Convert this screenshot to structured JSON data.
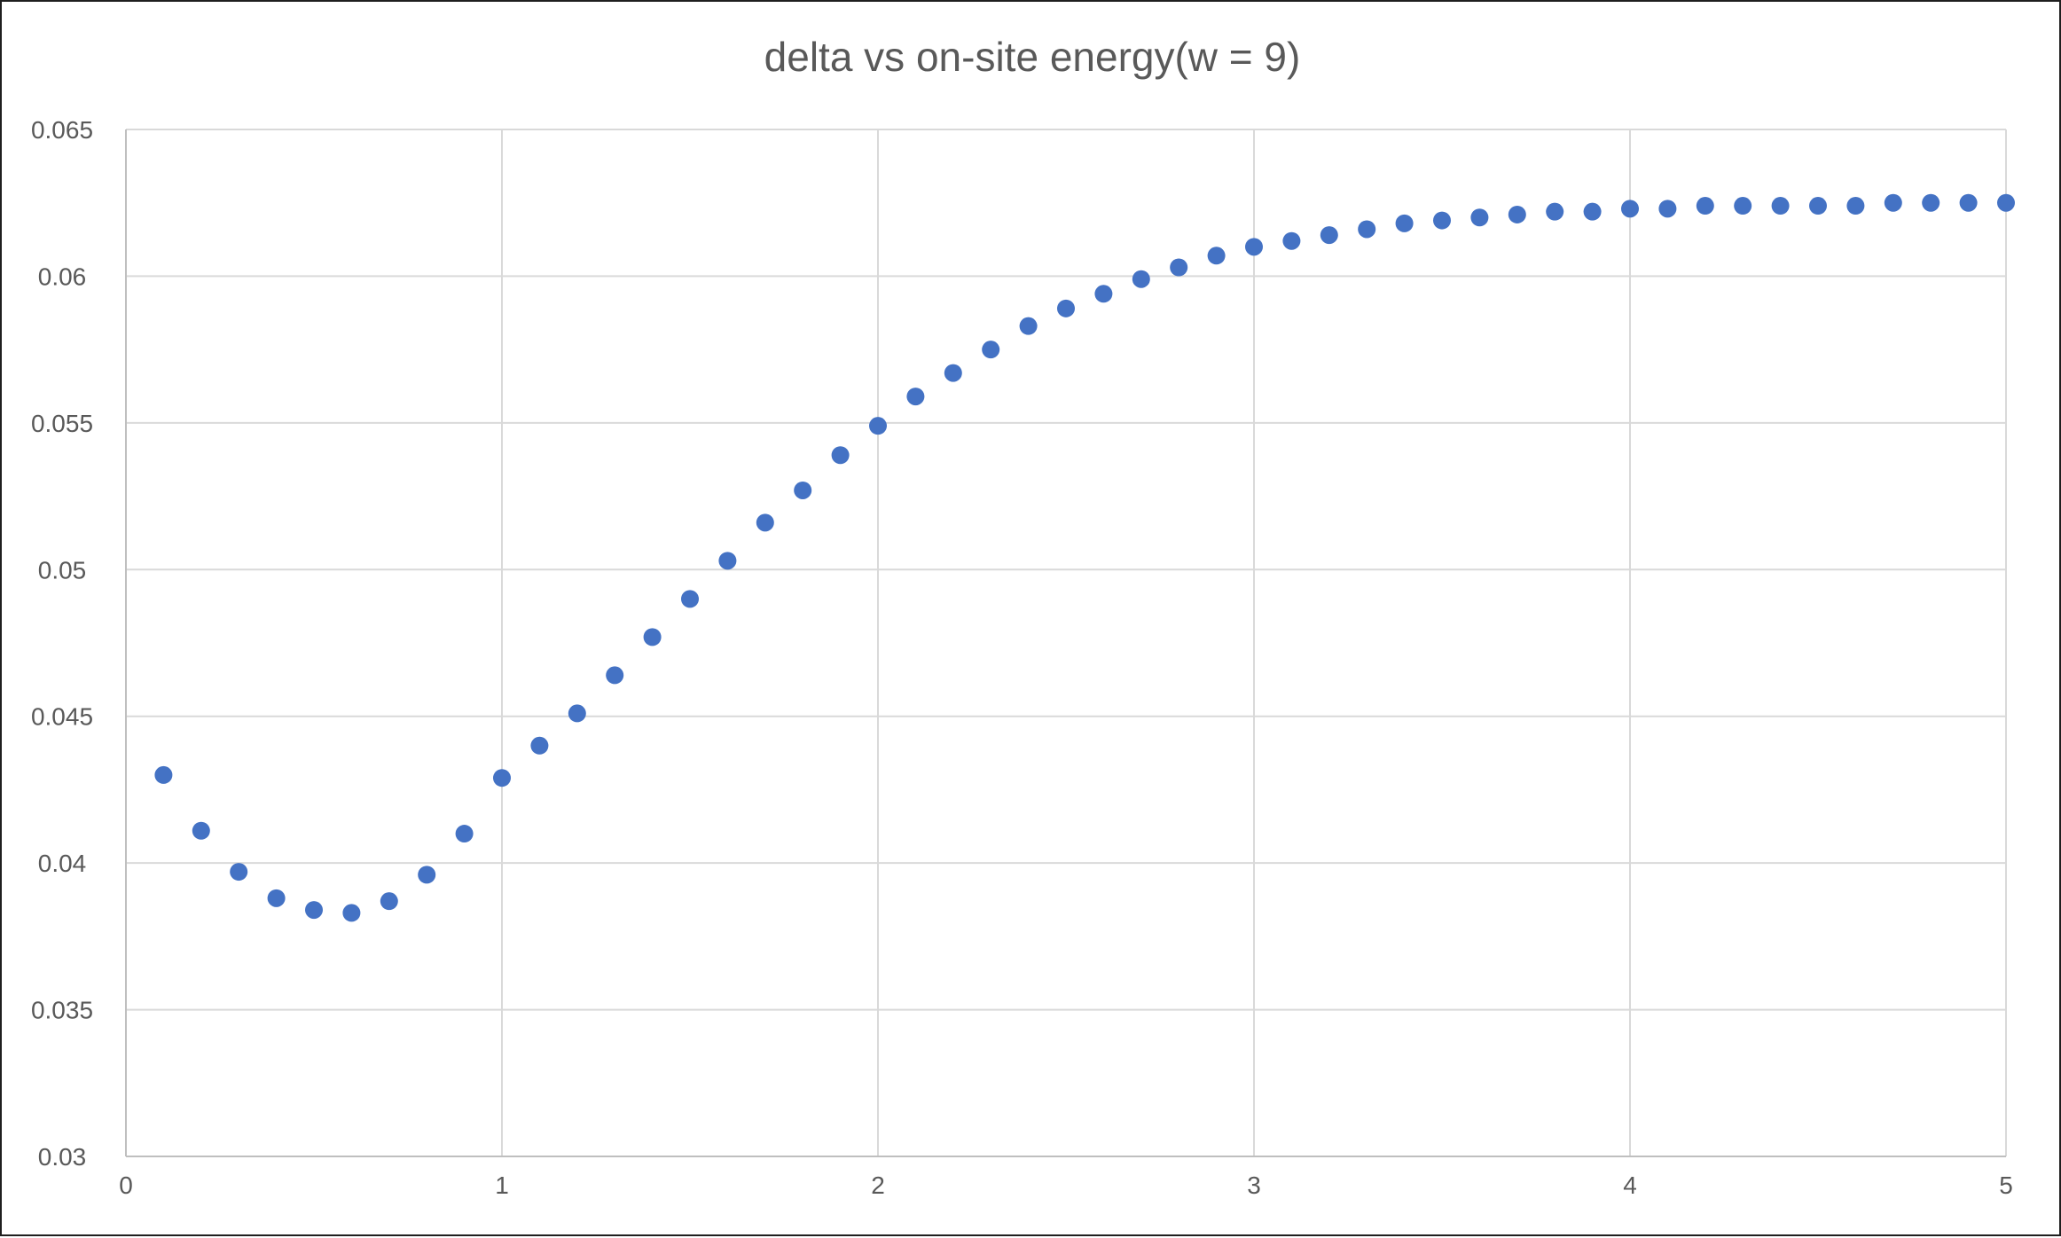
{
  "chart_data": {
    "type": "scatter",
    "title": "delta vs on-site energy(w = 9)",
    "xlabel": "",
    "ylabel": "",
    "xlim": [
      0,
      5
    ],
    "ylim": [
      0.03,
      0.065
    ],
    "x_ticks": [
      "0",
      "1",
      "2",
      "3",
      "4",
      "5"
    ],
    "y_ticks": [
      "0.03",
      "0.035",
      "0.04",
      "0.045",
      "0.05",
      "0.055",
      "0.06",
      "0.065"
    ],
    "grid": true,
    "legend": "none",
    "colors": {
      "marker": "#4472c4",
      "grid": "#d9d9d9",
      "text": "#595959"
    },
    "series": [
      {
        "x": [
          0.1,
          0.2,
          0.3,
          0.4,
          0.5,
          0.6,
          0.7,
          0.8,
          0.9,
          1.0,
          1.1,
          1.2,
          1.3,
          1.4,
          1.5,
          1.6,
          1.7,
          1.8,
          1.9,
          2.0,
          2.1,
          2.2,
          2.3,
          2.4,
          2.5,
          2.6,
          2.7,
          2.8,
          2.9,
          3.0,
          3.1,
          3.2,
          3.3,
          3.4,
          3.5,
          3.6,
          3.7,
          3.8,
          3.9,
          4.0,
          4.1,
          4.2,
          4.3,
          4.4,
          4.5,
          4.6,
          4.7,
          4.8,
          4.9,
          5.0
        ],
        "y": [
          0.043,
          0.0411,
          0.0397,
          0.0388,
          0.0384,
          0.0383,
          0.0387,
          0.0396,
          0.041,
          0.0429,
          0.044,
          0.0451,
          0.0464,
          0.0477,
          0.049,
          0.0503,
          0.0516,
          0.0527,
          0.0539,
          0.0549,
          0.0559,
          0.0567,
          0.0575,
          0.0583,
          0.0589,
          0.0594,
          0.0599,
          0.0603,
          0.0607,
          0.061,
          0.0612,
          0.0614,
          0.0616,
          0.0618,
          0.0619,
          0.062,
          0.0621,
          0.0622,
          0.0622,
          0.0623,
          0.0623,
          0.0624,
          0.0624,
          0.0624,
          0.0624,
          0.0624,
          0.0625,
          0.0625,
          0.0625,
          0.0625
        ]
      }
    ]
  }
}
